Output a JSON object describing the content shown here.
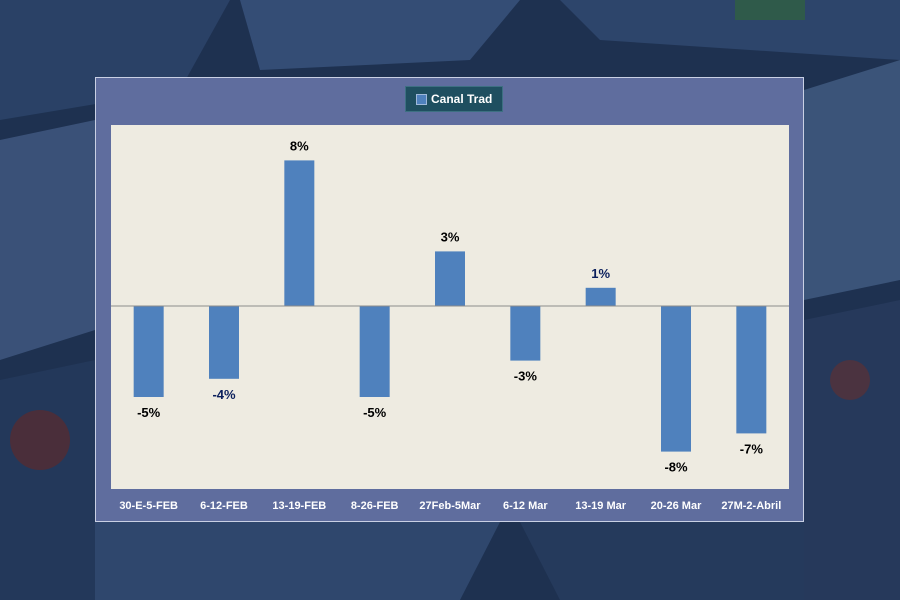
{
  "colors": {
    "bar": "#4f81bd",
    "plot_bg": "#eeebe1",
    "panel_bg": "#5f6d9e",
    "legend_bg": "#1f4f60",
    "label_dark": "#000000",
    "label_navy": "#0b1f5c",
    "tick_label": "#ffffff"
  },
  "chart_data": {
    "type": "bar",
    "categories": [
      "30-E-5-FEB",
      "6-12-FEB",
      "13-19-FEB",
      "8-26-FEB",
      "27Feb-5Mar",
      "6-12 Mar",
      "13-19 Mar",
      "20-26 Mar",
      "27M-2-Abril"
    ],
    "series": [
      {
        "name": "Canal Trad",
        "values": [
          -5,
          -4,
          8,
          -5,
          3,
          -3,
          1,
          -8,
          -7
        ]
      }
    ],
    "data_labels": [
      "-5%",
      "-4%",
      "8%",
      "-5%",
      "3%",
      "-3%",
      "1%",
      "-8%",
      "-7%"
    ],
    "label_colors": [
      "dark",
      "navy",
      "dark",
      "dark",
      "dark",
      "dark",
      "navy",
      "dark",
      "dark"
    ],
    "ylim": [
      -10,
      10
    ],
    "grid": false,
    "legend_position": "top-center"
  }
}
